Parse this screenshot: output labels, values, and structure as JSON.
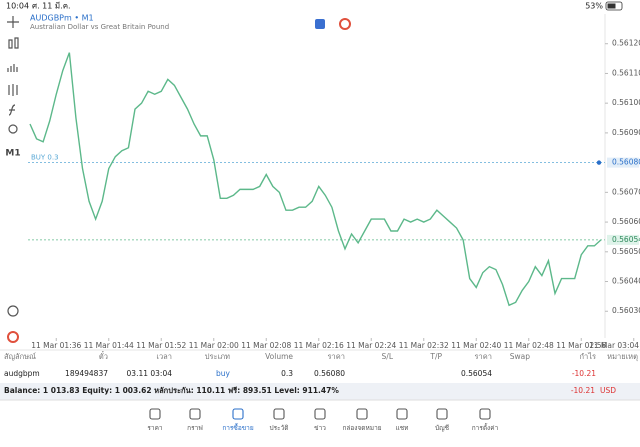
{
  "status_bar": {
    "time": "10:04",
    "date": "ศ. 11 มี.ค.",
    "battery": "53%"
  },
  "toolbar": {
    "timeframe": "M1"
  },
  "chart_header": {
    "symbol": "AUDGBPm • M1",
    "description": "Australian Dollar vs Great Britain Pound"
  },
  "chart_data": {
    "type": "line",
    "color": "#5cb88a",
    "categories": [
      null,
      null,
      null,
      null,
      "11 Mar 01:36",
      null,
      null,
      null,
      null,
      null,
      null,
      null,
      "11 Mar 01:44",
      null,
      null,
      null,
      null,
      null,
      null,
      null,
      "11 Mar 01:52",
      null,
      null,
      null,
      null,
      null,
      null,
      null,
      "11 Mar 02:00",
      null,
      null,
      null,
      null,
      null,
      null,
      null,
      "11 Mar 02:08",
      null,
      null,
      null,
      null,
      null,
      null,
      null,
      "11 Mar 02:16",
      null,
      null,
      null,
      null,
      null,
      null,
      null,
      "11 Mar 02:24",
      null,
      null,
      null,
      null,
      null,
      null,
      null,
      "11 Mar 02:32",
      null,
      null,
      null,
      null,
      null,
      null,
      null,
      "11 Mar 02:40",
      null,
      null,
      null,
      null,
      null,
      null,
      null,
      "11 Mar 02:48",
      null,
      null,
      null,
      null,
      null,
      null,
      null,
      "11 Mar 02:56",
      null,
      null,
      null,
      null,
      null,
      null,
      null,
      "11 Mar 03:04"
    ],
    "values": [
      0.56093,
      0.56088,
      0.56087,
      0.56094,
      0.56103,
      0.56111,
      0.56117,
      0.56095,
      0.56078,
      0.56067,
      0.56061,
      0.56067,
      0.56078,
      0.56082,
      0.56084,
      0.56085,
      0.56098,
      0.561,
      0.56104,
      0.56103,
      0.56104,
      0.56108,
      0.56106,
      0.56102,
      0.56098,
      0.56093,
      0.56089,
      0.56089,
      0.56081,
      0.56068,
      0.56068,
      0.56069,
      0.56071,
      0.56071,
      0.56071,
      0.56072,
      0.56076,
      0.56072,
      0.5607,
      0.56064,
      0.56064,
      0.56065,
      0.56065,
      0.56067,
      0.56072,
      0.56069,
      0.56065,
      0.56057,
      0.56051,
      0.56056,
      0.56053,
      0.56057,
      0.56061,
      0.56061,
      0.56061,
      0.56057,
      0.56057,
      0.56061,
      0.5606,
      0.56061,
      0.5606,
      0.56061,
      0.56064,
      0.56062,
      0.5606,
      0.56058,
      0.56054,
      0.56041,
      0.56038,
      0.56043,
      0.56045,
      0.56044,
      0.56039,
      0.56032,
      0.56033,
      0.56037,
      0.5604,
      0.56045,
      0.56042,
      0.56047,
      0.56036,
      0.56041,
      0.56041,
      0.56041,
      0.56049,
      0.56052,
      0.56052,
      0.56054,
      null,
      null,
      null,
      null,
      null
    ],
    "ylim": [
      0.56021,
      0.5613
    ],
    "yticks": [
      {
        "value": 0.5612,
        "label": "0.56120"
      },
      {
        "value": 0.5611,
        "label": "0.56110"
      },
      {
        "value": 0.561,
        "label": "0.56100"
      },
      {
        "value": 0.5609,
        "label": "0.56090"
      },
      {
        "value": 0.5607,
        "label": "0.56070"
      },
      {
        "value": 0.5606,
        "label": "0.56060"
      },
      {
        "value": 0.5605,
        "label": "0.56050"
      },
      {
        "value": 0.5604,
        "label": "0.56040"
      },
      {
        "value": 0.5603,
        "label": "0.56030"
      }
    ],
    "buy_line": {
      "name": "BUY 0.3",
      "color": "#5aa9d6",
      "price": {
        "value": 0.5608,
        "label": "0.56080"
      }
    },
    "price_line": {
      "color": "#5cb88a",
      "price": 0.56054
    }
  },
  "table": {
    "headers": [
      "สัญลักษณ์",
      "ตั๋ว",
      "เวลา",
      "ประเภท",
      "Volume",
      "ราคา",
      "S/L",
      "T/P",
      "ราคา",
      "Swap",
      "กำไร",
      "หมายเหตุ"
    ],
    "row": {
      "symbol": "audgbpm",
      "ticket": "189494837",
      "time": "03.11 03:04",
      "type": "buy",
      "volume": "0.3",
      "open_price": "0.56080",
      "current_price": "0.56054",
      "profit": "-10.21"
    }
  },
  "balance": {
    "text": "Balance: 1 013.83 Equity: 1 003.62 หลักประกัน: 110.11 ฟรี: 893.51 Level: 911.47%",
    "profit": "-10.21",
    "currency": "USD"
  },
  "tabs": [
    "ราคา",
    "กราฟ",
    "การซื้อขาย",
    "ประวัติ",
    "ข่าว",
    "กล่องจดหมาย",
    "แชท",
    "บัญชี",
    "การตั้งค่า"
  ]
}
